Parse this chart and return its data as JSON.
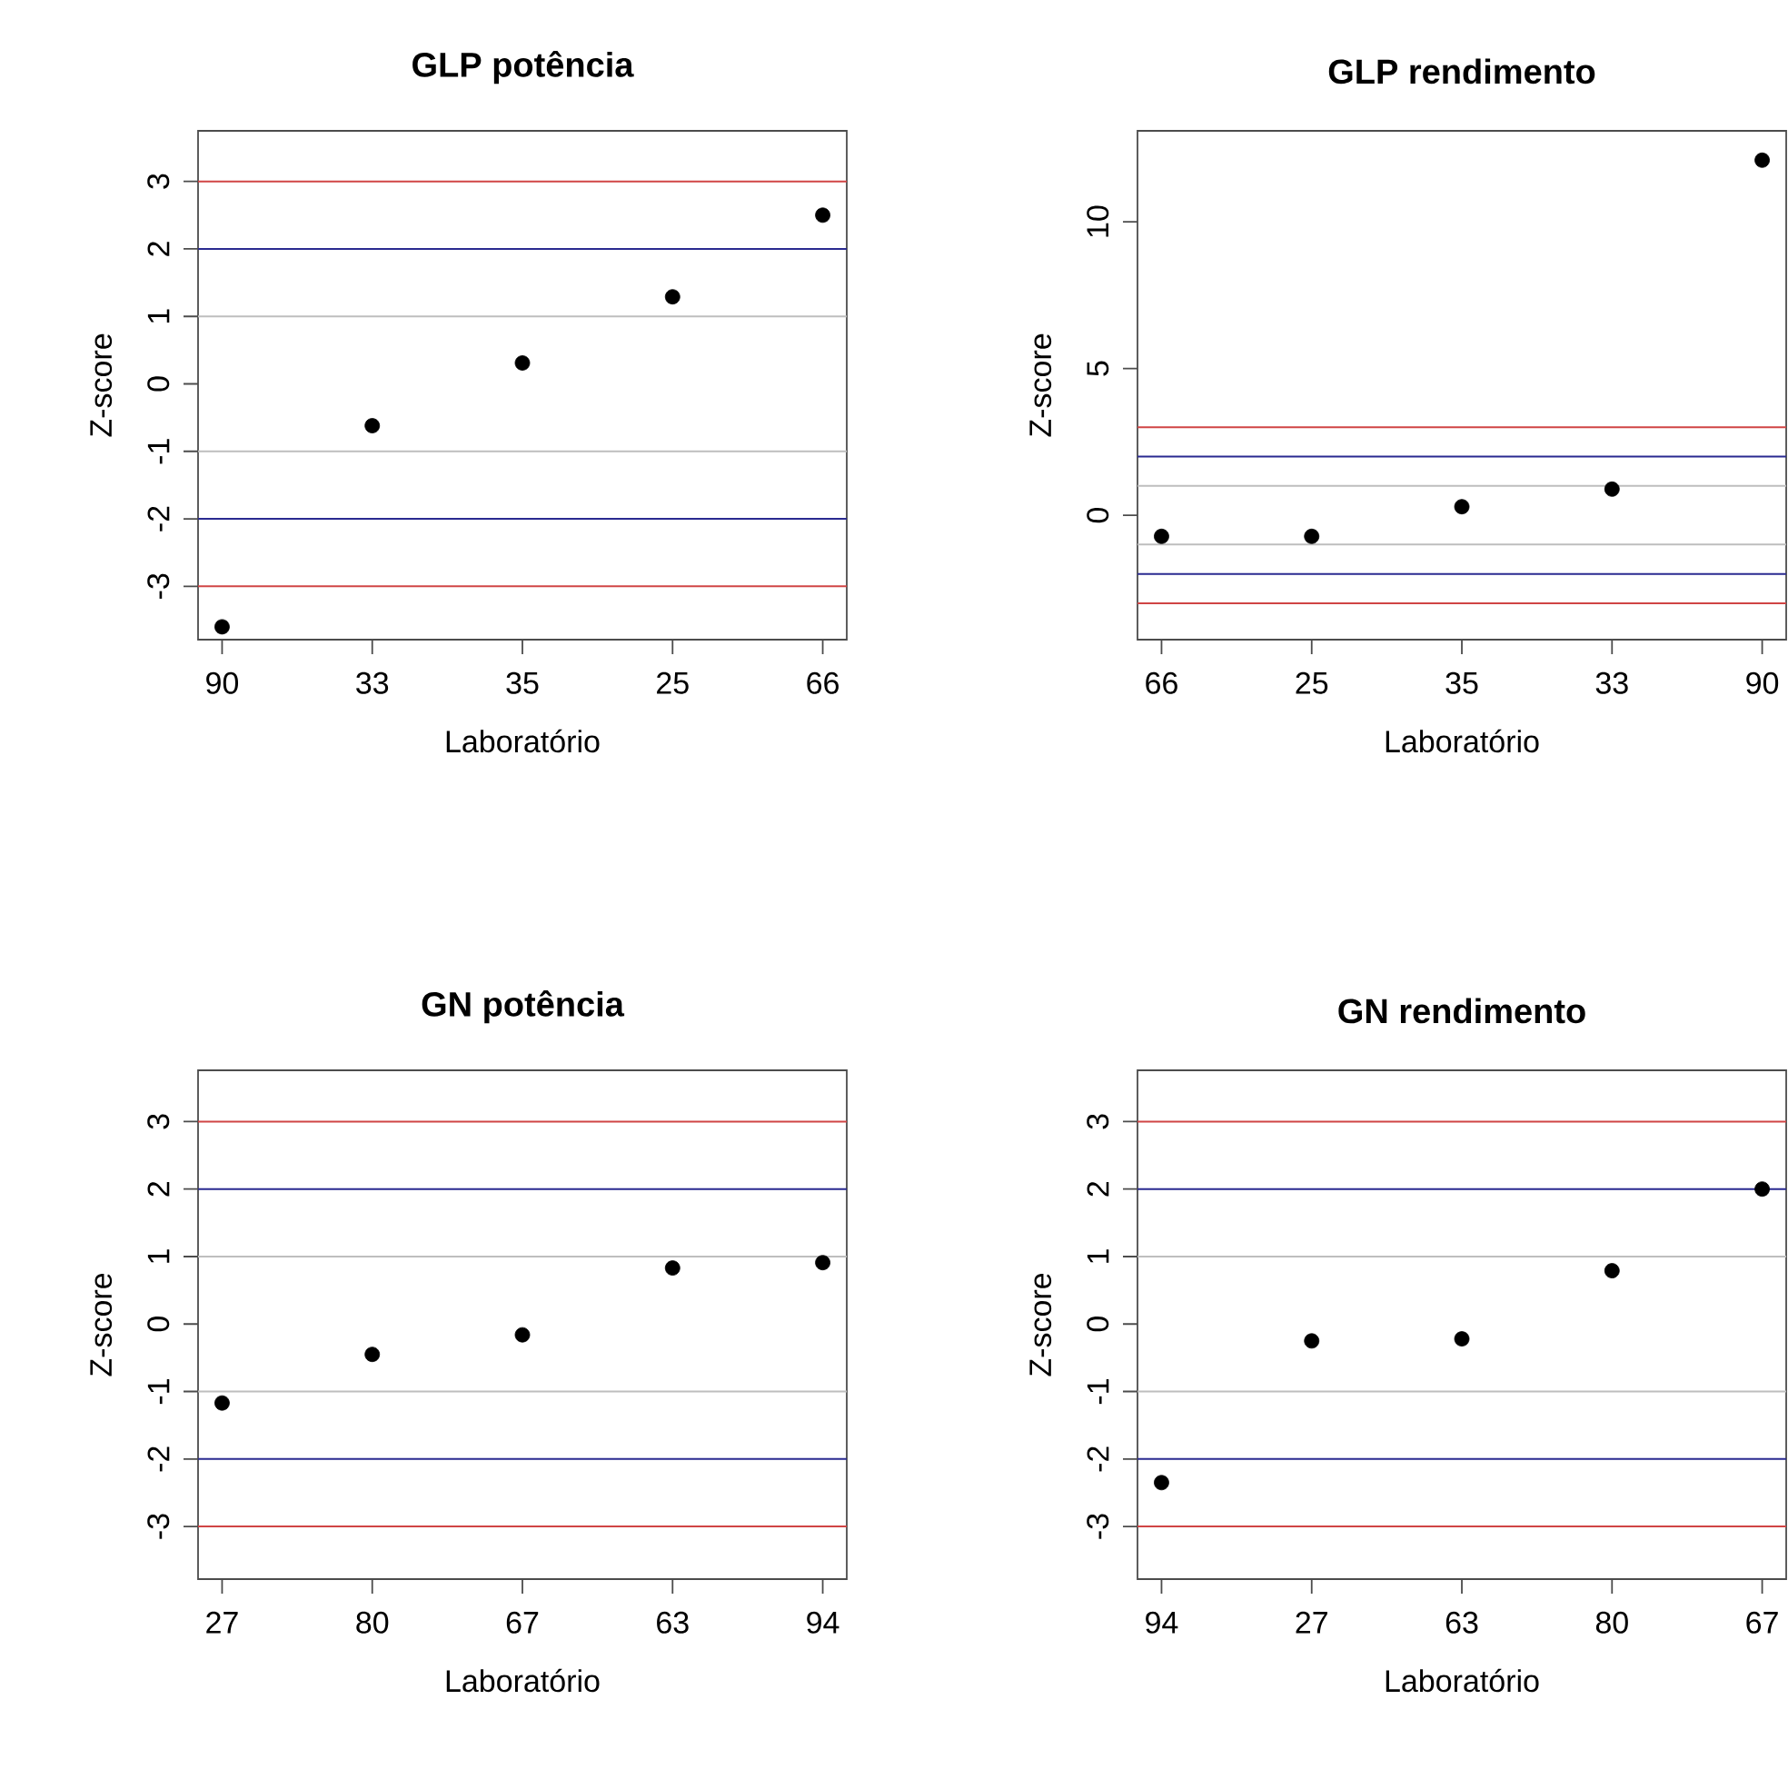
{
  "chart_data": [
    {
      "type": "scatter",
      "title": "GLP potência",
      "xlabel": "Laboratório",
      "ylabel": "Z-score",
      "categories": [
        "90",
        "33",
        "35",
        "25",
        "66"
      ],
      "values": [
        -3.6,
        -0.62,
        0.31,
        1.29,
        2.5
      ],
      "color": "#000000",
      "ylim": [
        -3.79,
        3.75
      ],
      "yticks": [
        -3,
        -2,
        -1,
        0,
        1,
        2,
        3
      ],
      "ref_lines": [
        {
          "axis": "y",
          "value": 3,
          "color": "#d04545"
        },
        {
          "axis": "y",
          "value": 2,
          "color": "#2a2a90"
        },
        {
          "axis": "y",
          "value": 1,
          "color": "#bebebe"
        },
        {
          "axis": "y",
          "value": -1,
          "color": "#bebebe"
        },
        {
          "axis": "y",
          "value": -2,
          "color": "#2a2a90"
        },
        {
          "axis": "y",
          "value": -3,
          "color": "#d04545"
        }
      ]
    },
    {
      "type": "scatter",
      "title": "GLP rendimento",
      "xlabel": "Laboratório",
      "ylabel": "Z-score",
      "categories": [
        "66",
        "25",
        "35",
        "33",
        "90"
      ],
      "values": [
        -0.72,
        -0.72,
        0.29,
        0.89,
        12.1
      ],
      "color": "#000000",
      "ylim": [
        -4.24,
        13.1
      ],
      "yticks": [
        0,
        5,
        10
      ],
      "ref_lines": [
        {
          "axis": "y",
          "value": 3,
          "color": "#d04545"
        },
        {
          "axis": "y",
          "value": 2,
          "color": "#2a2a90"
        },
        {
          "axis": "y",
          "value": 1,
          "color": "#bebebe"
        },
        {
          "axis": "y",
          "value": -1,
          "color": "#bebebe"
        },
        {
          "axis": "y",
          "value": -2,
          "color": "#2a2a90"
        },
        {
          "axis": "y",
          "value": -3,
          "color": "#d04545"
        }
      ]
    },
    {
      "type": "scatter",
      "title": "GN potência",
      "xlabel": "Laboratório",
      "ylabel": "Z-score",
      "categories": [
        "27",
        "80",
        "67",
        "63",
        "94"
      ],
      "values": [
        -1.17,
        -0.45,
        -0.16,
        0.83,
        0.91
      ],
      "color": "#000000",
      "ylim": [
        -3.78,
        3.76
      ],
      "yticks": [
        -3,
        -2,
        -1,
        0,
        1,
        2,
        3
      ],
      "ref_lines": [
        {
          "axis": "y",
          "value": 3,
          "color": "#d04545"
        },
        {
          "axis": "y",
          "value": 2,
          "color": "#2a2a90"
        },
        {
          "axis": "y",
          "value": 1,
          "color": "#bebebe"
        },
        {
          "axis": "y",
          "value": -1,
          "color": "#bebebe"
        },
        {
          "axis": "y",
          "value": -2,
          "color": "#2a2a90"
        },
        {
          "axis": "y",
          "value": -3,
          "color": "#d04545"
        }
      ]
    },
    {
      "type": "scatter",
      "title": "GN rendimento",
      "xlabel": "Laboratório",
      "ylabel": "Z-score",
      "categories": [
        "94",
        "27",
        "63",
        "80",
        "67"
      ],
      "values": [
        -2.35,
        -0.25,
        -0.22,
        0.79,
        2.0
      ],
      "color": "#000000",
      "ylim": [
        -3.78,
        3.76
      ],
      "yticks": [
        -3,
        -2,
        -1,
        0,
        1,
        2,
        3
      ],
      "ref_lines": [
        {
          "axis": "y",
          "value": 3,
          "color": "#d04545"
        },
        {
          "axis": "y",
          "value": 2,
          "color": "#2a2a90"
        },
        {
          "axis": "y",
          "value": 1,
          "color": "#bebebe"
        },
        {
          "axis": "y",
          "value": -1,
          "color": "#bebebe"
        },
        {
          "axis": "y",
          "value": -2,
          "color": "#2a2a90"
        },
        {
          "axis": "y",
          "value": -3,
          "color": "#d04545"
        }
      ]
    }
  ]
}
